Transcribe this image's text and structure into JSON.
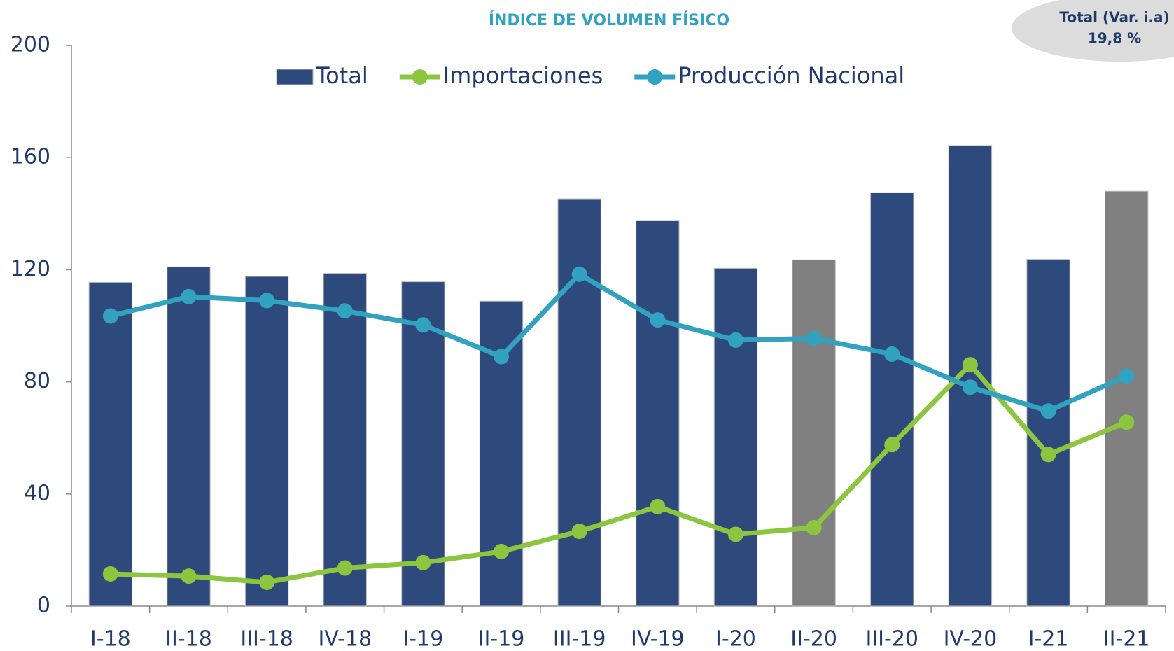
{
  "chart_data": {
    "type": "bar_line",
    "title": "ÍNDICE DE VOLUMEN FÍSICO",
    "annotation": [
      "Total (Var. i.a)",
      "19,8 %"
    ],
    "categories": [
      "I-18",
      "II-18",
      "III-18",
      "IV-18",
      "I-19",
      "II-19",
      "III-19",
      "IV-19",
      "I-20",
      "II-20",
      "III-20",
      "IV-20",
      "I-21",
      "II-21"
    ],
    "series": [
      {
        "name": "Total",
        "type": "bar",
        "color": "#2e4a7d",
        "colors": [
          "#2e4a7d",
          "#2e4a7d",
          "#2e4a7d",
          "#2e4a7d",
          "#2e4a7d",
          "#2e4a7d",
          "#2e4a7d",
          "#2e4a7d",
          "#2e4a7d",
          "#808080",
          "#2e4a7d",
          "#2e4a7d",
          "#2e4a7d",
          "#808080"
        ],
        "values": [
          115.5,
          121,
          117.6,
          118.7,
          115.7,
          108.8,
          145.3,
          137.6,
          120.5,
          123.5,
          147.5,
          164.3,
          123.7,
          148
        ]
      },
      {
        "name": "Importaciones",
        "type": "line",
        "color": "#8cc63f",
        "values": [
          11.5,
          10.7,
          8.5,
          13.6,
          15.5,
          19.5,
          26.7,
          35.5,
          25.6,
          28,
          57.6,
          86.1,
          54.1,
          65.6
        ]
      },
      {
        "name": "Producción Nacional",
        "type": "line",
        "color": "#31a2c0",
        "values": [
          103.5,
          110.4,
          109,
          105.3,
          100.3,
          89,
          118.4,
          102.1,
          94.9,
          95.5,
          89.9,
          78.1,
          69.6,
          82.1
        ]
      }
    ],
    "ylim": [
      0,
      200
    ],
    "yticks": [
      0,
      40,
      80,
      120,
      160,
      200
    ],
    "grid": false,
    "legend": "top"
  }
}
